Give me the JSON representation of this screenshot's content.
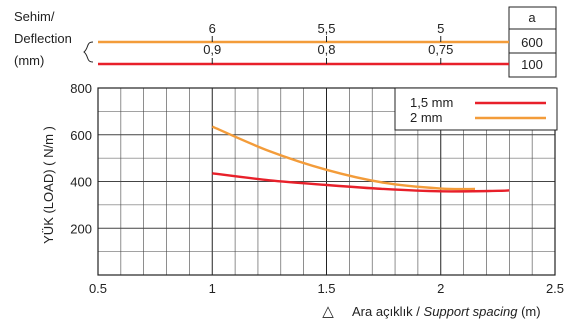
{
  "chart_data": {
    "type": "line",
    "ylabel": "YÜK (LOAD) ( N/m )",
    "xlabel_prefix": "Ara açıklık / ",
    "xlabel_italic": "Support spacing",
    "xlabel_suffix": " (m)",
    "spacing_symbol": "△",
    "xlim": [
      0.5,
      2.5
    ],
    "ylim": [
      0,
      800
    ],
    "x_ticks": [
      "0.5",
      "1",
      "1.5",
      "2",
      "2.5"
    ],
    "y_ticks": [
      "200",
      "400",
      "600",
      "800"
    ],
    "grid": true,
    "legend_position": "top-right",
    "series": [
      {
        "name": "1,5 mm",
        "color": "#e8202a",
        "x": [
          1.0,
          1.25,
          1.5,
          1.75,
          2.0,
          2.25,
          2.3
        ],
        "y": [
          435,
          405,
          385,
          368,
          358,
          360,
          362
        ]
      },
      {
        "name": "2 mm",
        "color": "#f39c3a",
        "x": [
          1.0,
          1.25,
          1.5,
          1.75,
          2.0,
          2.15
        ],
        "y": [
          635,
          530,
          450,
          395,
          370,
          368
        ]
      }
    ],
    "deflection": {
      "label_lines": [
        "Sehim/",
        "Deflection",
        "(mm)"
      ],
      "column_header": "a",
      "rows": [
        {
          "a": "600",
          "color": "#f39c3a",
          "marks": [
            {
              "x": 1.0,
              "label": "6"
            },
            {
              "x": 1.5,
              "label": "5,5"
            },
            {
              "x": 2.0,
              "label": "5"
            }
          ]
        },
        {
          "a": "100",
          "color": "#e8202a",
          "marks": [
            {
              "x": 1.0,
              "label": "0,9"
            },
            {
              "x": 1.5,
              "label": "0,8"
            },
            {
              "x": 2.0,
              "label": "0,75"
            }
          ]
        }
      ]
    }
  }
}
